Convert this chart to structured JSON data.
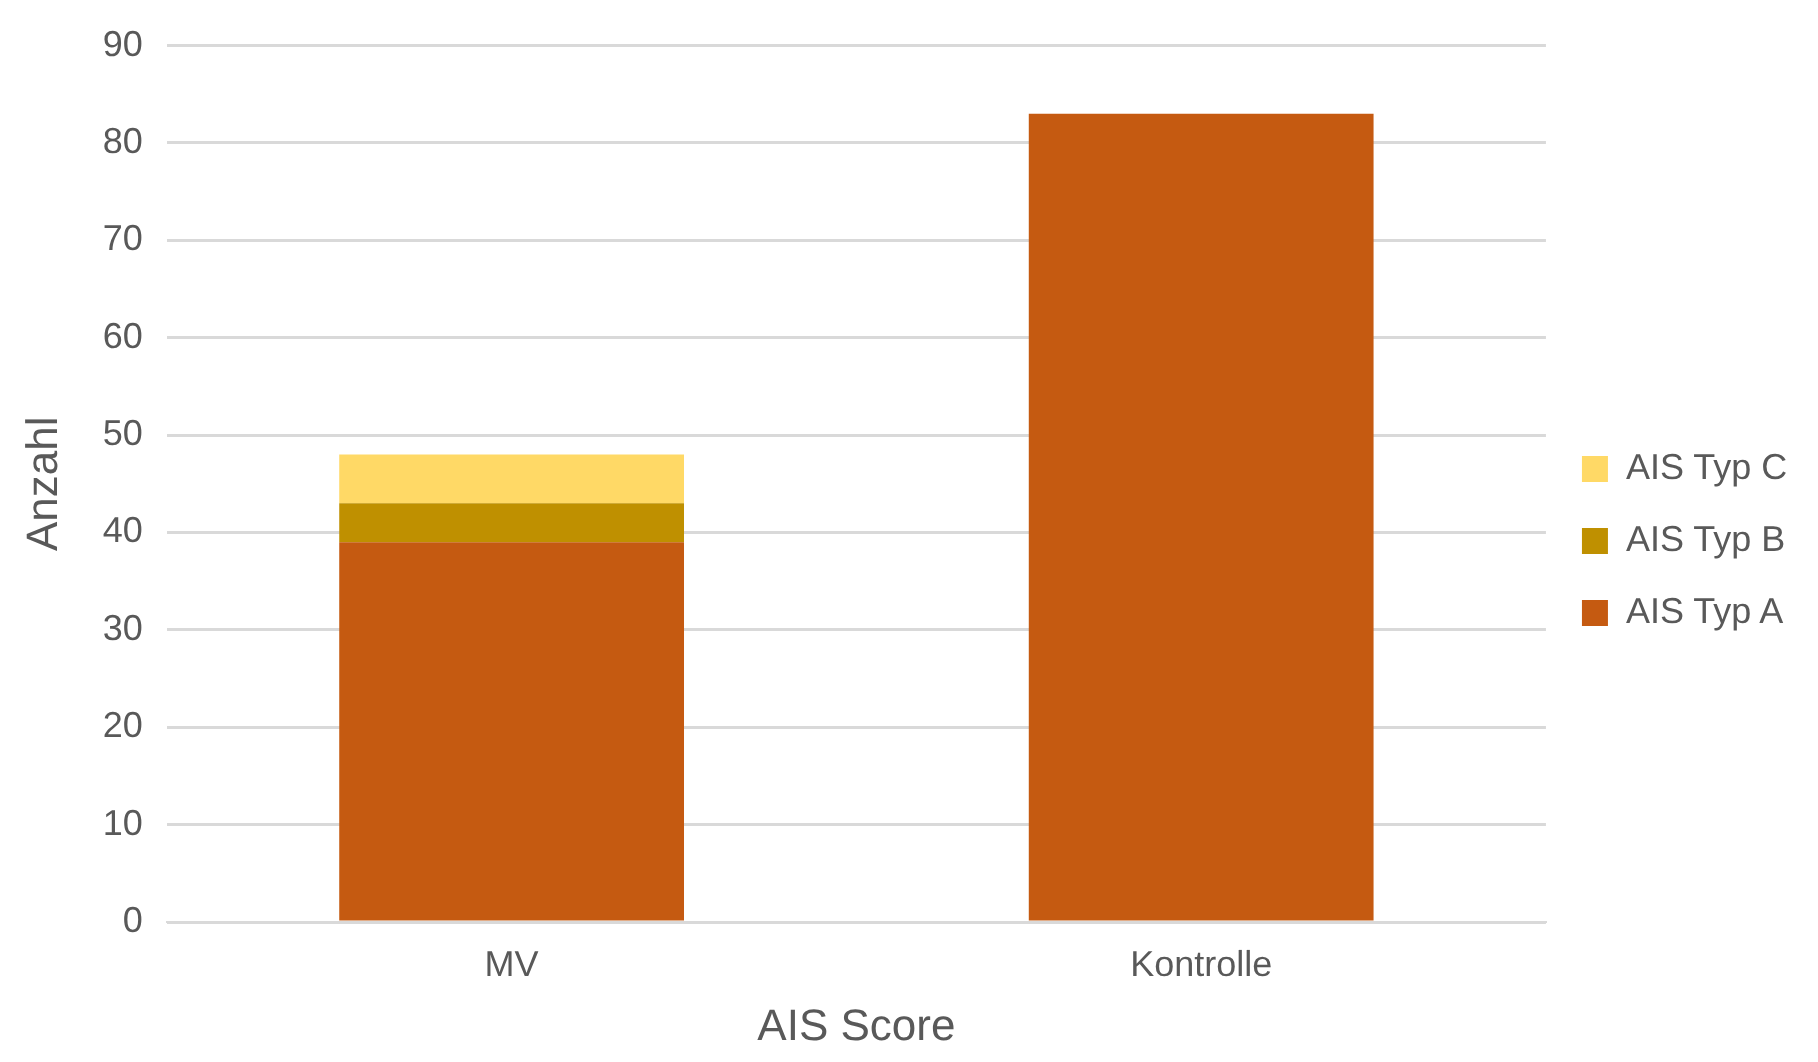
{
  "chart_data": {
    "type": "bar",
    "stacked": true,
    "xlabel": "AIS Score",
    "ylabel": "Anzahl",
    "categories": [
      "MV",
      "Kontrolle"
    ],
    "series": [
      {
        "name": "AIS Typ A",
        "color": "#c55a11",
        "values": [
          39,
          83
        ]
      },
      {
        "name": "AIS Typ B",
        "color": "#bf9000",
        "values": [
          4,
          0
        ]
      },
      {
        "name": "AIS Typ C",
        "color": "#ffd966",
        "values": [
          5,
          0
        ]
      }
    ],
    "ylim": [
      0,
      90
    ],
    "yticks": [
      0,
      10,
      20,
      30,
      40,
      50,
      60,
      70,
      80,
      90
    ],
    "grid": "y",
    "legend": "right"
  }
}
